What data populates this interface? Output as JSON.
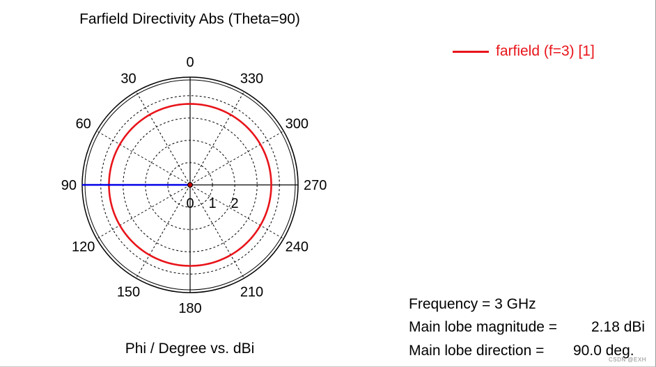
{
  "chart_data": {
    "type": "polar",
    "title": "Farfield Directivity Abs (Theta=90)",
    "xlabel": "Phi / Degree vs. dBi",
    "angle_direction": "counterclockwise",
    "angle_zero": "top",
    "angle_ticks": [
      "0",
      "30",
      "60",
      "90",
      "120",
      "150",
      "180",
      "210",
      "240",
      "270",
      "300",
      "330"
    ],
    "angle_tick_values": [
      0,
      30,
      60,
      90,
      120,
      150,
      180,
      210,
      240,
      270,
      300,
      330
    ],
    "radial_ticks": [
      "0",
      "1",
      "2"
    ],
    "radial_tick_values": [
      0,
      1,
      2
    ],
    "rlim": [
      0,
      2.9
    ],
    "grid": true,
    "series": [
      {
        "name": "farfield (f=3) [1]",
        "color": "#e8141a",
        "phi": [
          0,
          30,
          60,
          90,
          120,
          150,
          180,
          210,
          240,
          270,
          300,
          330,
          360
        ],
        "r": [
          2.18,
          2.18,
          2.18,
          2.18,
          2.18,
          2.18,
          2.18,
          2.18,
          2.18,
          2.18,
          2.18,
          2.18,
          2.18
        ]
      }
    ],
    "main_lobe_marker": {
      "direction": 90.0,
      "color": "#0000e6"
    },
    "legend_position": "top-right"
  },
  "info": {
    "frequency": "Frequency = 3 GHz",
    "magnitude_label": "Main lobe magnitude =",
    "magnitude_value": "2.18 dBi",
    "direction_label": "Main lobe direction =",
    "direction_value": "90.0 deg."
  },
  "watermark": "CSDN @EXH",
  "colors": {
    "grid": "#000000",
    "series": "#e8141a",
    "marker": "#0000e6"
  }
}
